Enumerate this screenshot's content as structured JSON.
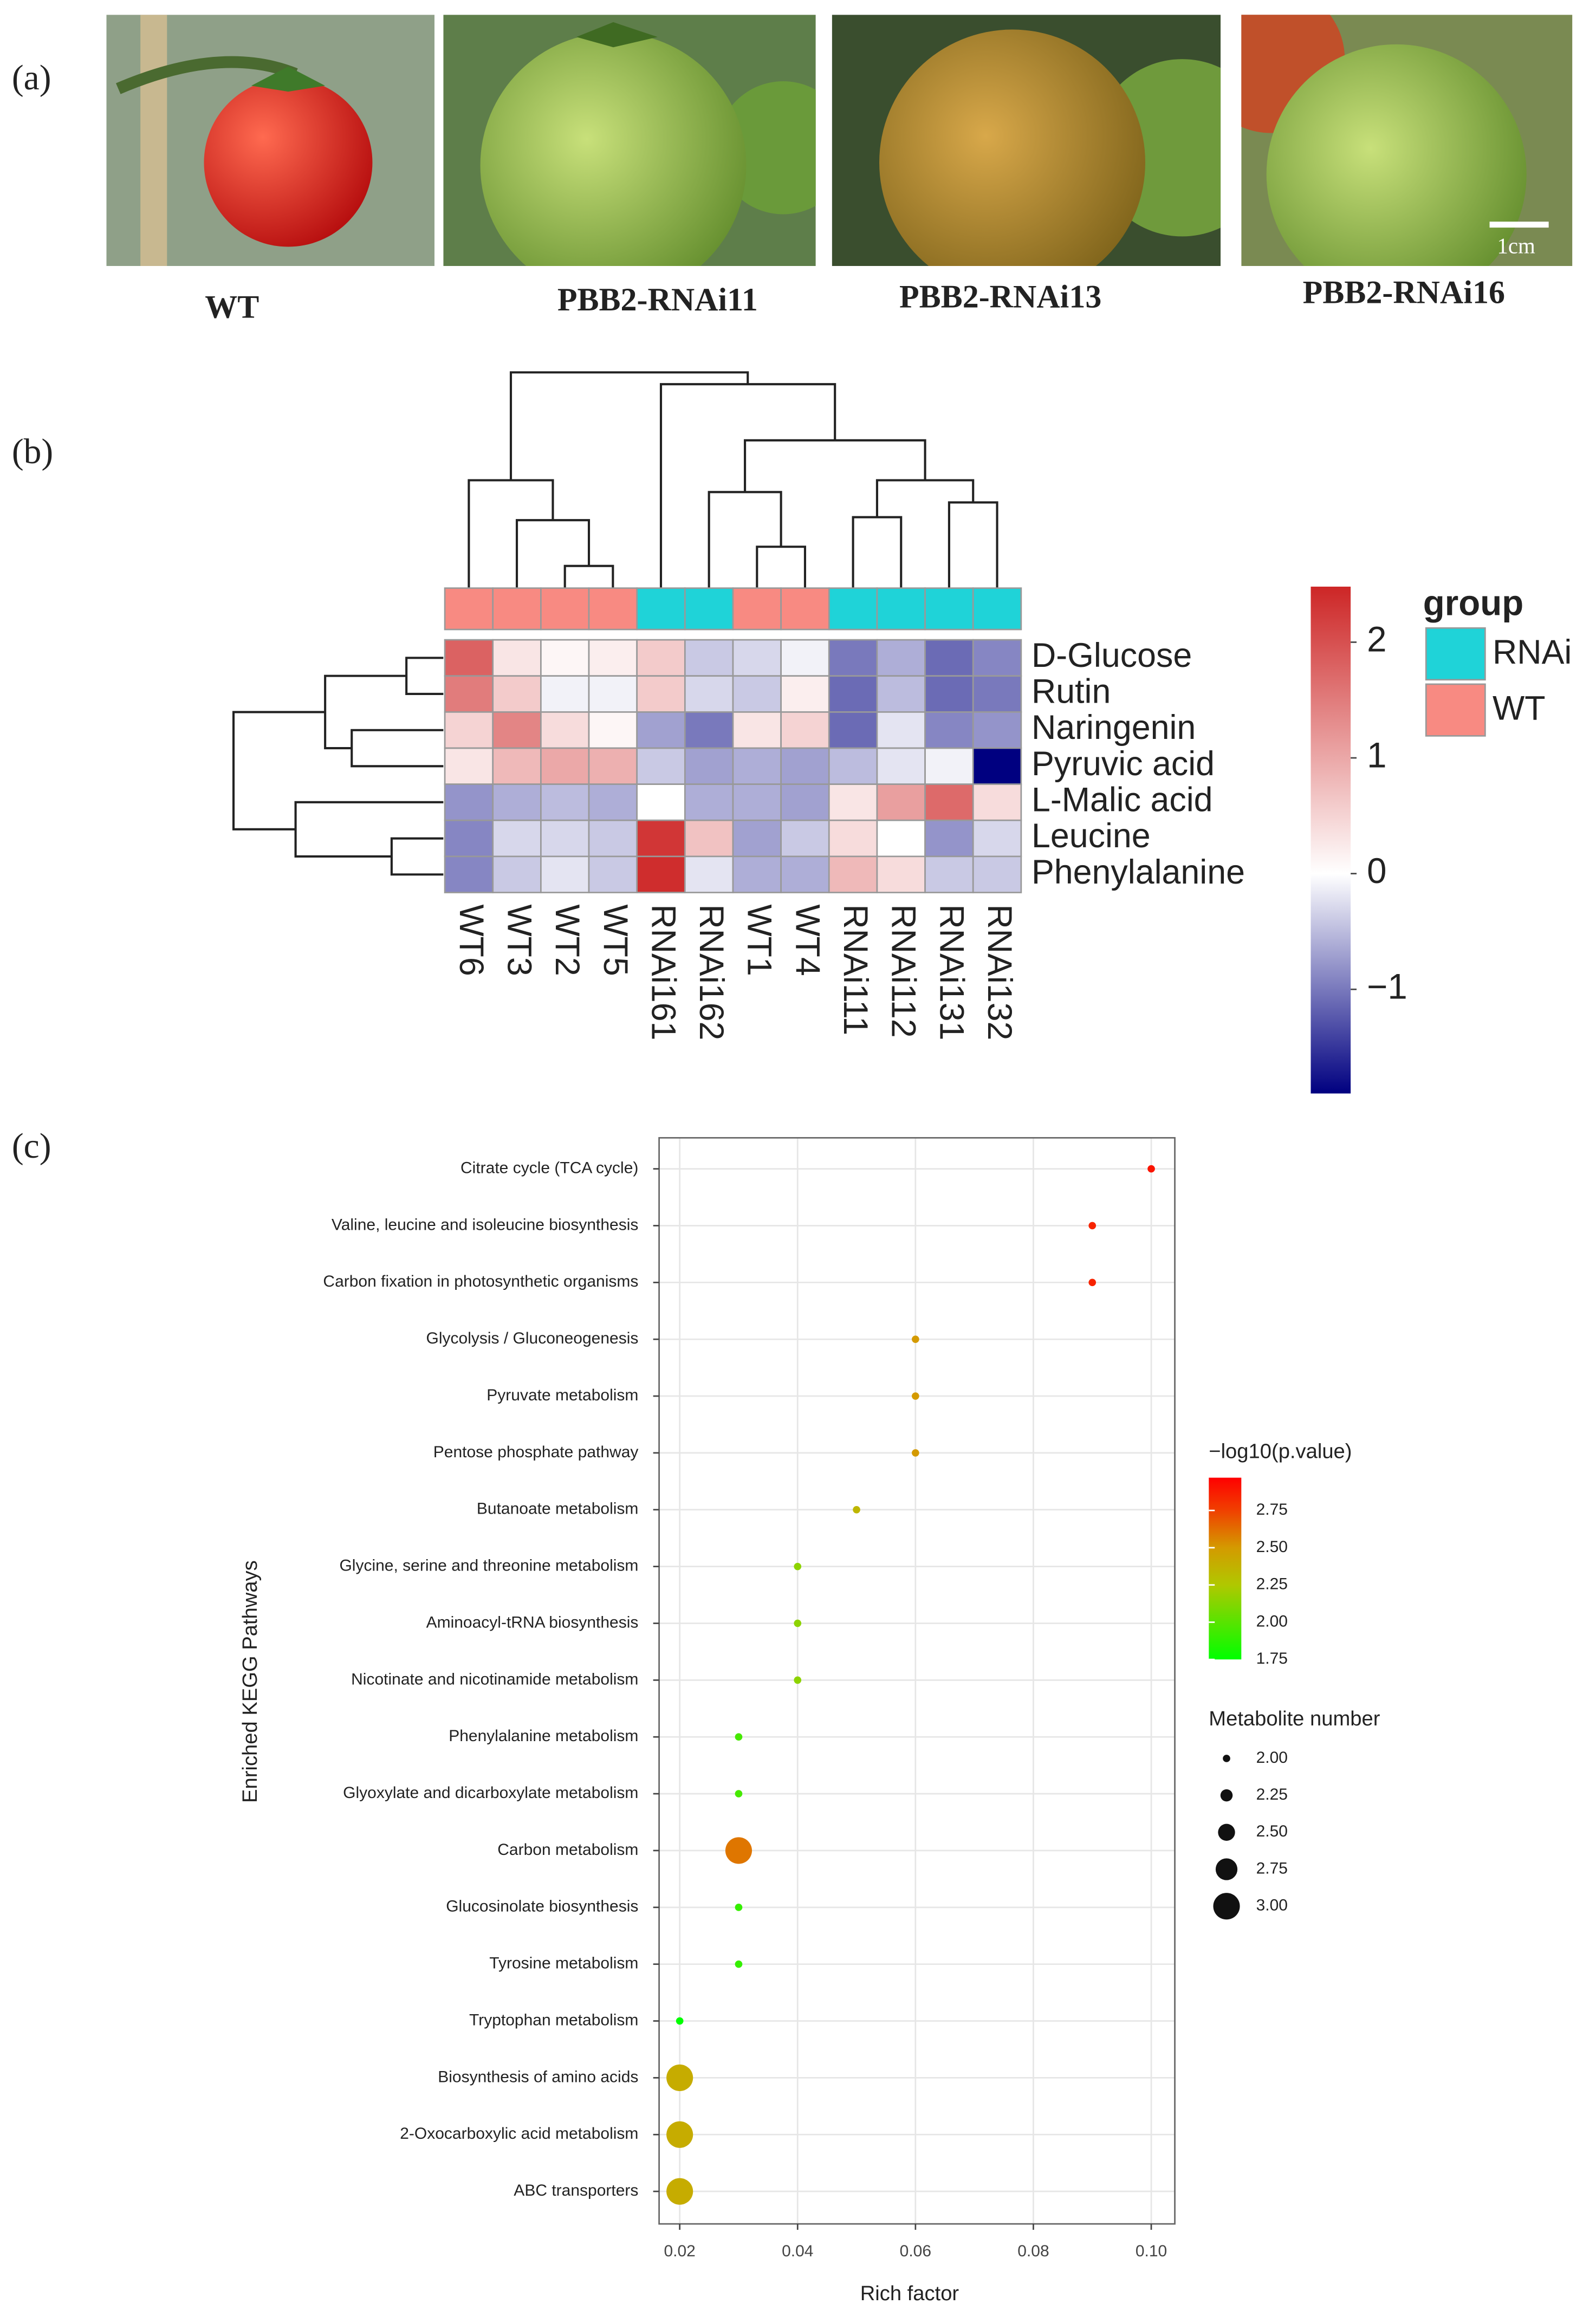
{
  "panel_a": {
    "label": "(a)",
    "photos": [
      {
        "caption": "WT"
      },
      {
        "caption": "PBB2-RNAi11"
      },
      {
        "caption": "PBB2-RNAi13"
      },
      {
        "caption": "PBB2-RNAi16"
      }
    ],
    "scale_bar": "1cm"
  },
  "chart_data": [
    {
      "type": "heatmap",
      "panel_label": "(b)",
      "rows": [
        "D-Glucose",
        "Rutin",
        "Naringenin",
        "Pyruvic acid",
        "L-Malic acid",
        "Leucine",
        "Phenylalanine"
      ],
      "columns": [
        "WT6",
        "WT3",
        "WT2",
        "WT5",
        "RNAi161",
        "RNAi162",
        "WT1",
        "WT4",
        "RNAi111",
        "RNAi112",
        "RNAi131",
        "RNAi132"
      ],
      "groups": [
        "WT",
        "WT",
        "WT",
        "WT",
        "RNAi",
        "RNAi",
        "WT",
        "WT",
        "RNAi",
        "RNAi",
        "RNAi",
        "RNAi"
      ],
      "group_legend": {
        "title": "group",
        "items": [
          {
            "name": "RNAi",
            "color": "#1fd3d8"
          },
          {
            "name": "WT",
            "color": "#f88a82"
          }
        ]
      },
      "values": [
        [
          1.8,
          0.3,
          0.1,
          0.2,
          0.6,
          -0.4,
          -0.3,
          -0.1,
          -1.0,
          -0.6,
          -1.1,
          -0.9
        ],
        [
          1.5,
          0.6,
          -0.1,
          -0.1,
          0.6,
          -0.3,
          -0.4,
          0.2,
          -1.1,
          -0.5,
          -1.1,
          -1.0
        ],
        [
          0.5,
          1.4,
          0.4,
          0.1,
          -0.7,
          -1.0,
          0.3,
          0.5,
          -1.1,
          -0.2,
          -0.9,
          -0.8
        ],
        [
          0.3,
          0.8,
          1.0,
          0.9,
          -0.4,
          -0.7,
          -0.6,
          -0.7,
          -0.5,
          -0.2,
          -0.1,
          -1.9
        ],
        [
          -0.8,
          -0.6,
          -0.5,
          -0.6,
          0.0,
          -0.6,
          -0.6,
          -0.7,
          0.3,
          1.1,
          1.7,
          0.4
        ],
        [
          -0.9,
          -0.3,
          -0.3,
          -0.4,
          2.3,
          0.7,
          -0.7,
          -0.4,
          0.4,
          0.0,
          -0.8,
          -0.3
        ],
        [
          -0.9,
          -0.4,
          -0.2,
          -0.4,
          2.4,
          -0.2,
          -0.6,
          -0.6,
          0.8,
          0.4,
          -0.4,
          -0.4
        ]
      ],
      "colorscale": [
        [
          -1.9,
          "#000080"
        ],
        [
          0,
          "#ffffff"
        ],
        [
          2.48,
          "#cd2626"
        ]
      ],
      "clim": [
        -1.9,
        2.48
      ],
      "cticks": [
        2,
        1,
        0,
        {
          "value": -1,
          "label": "−1"
        }
      ]
    },
    {
      "type": "dot",
      "panel_label": "(c)",
      "categories": [
        "Citrate cycle (TCA cycle)",
        "Valine, leucine and isoleucine biosynthesis",
        "Carbon fixation in photosynthetic organisms",
        "Glycolysis / Gluconeogenesis",
        "Pyruvate metabolism",
        "Pentose phosphate pathway",
        "Butanoate metabolism",
        "Glycine, serine and threonine metabolism",
        "Aminoacyl-tRNA biosynthesis",
        "Nicotinate and nicotinamide metabolism",
        "Phenylalanine metabolism",
        "Glyoxylate and dicarboxylate metabolism",
        "Carbon metabolism",
        "Glucosinolate biosynthesis",
        "Tyrosine metabolism",
        "Tryptophan metabolism",
        "Biosynthesis of amino acids",
        "2-Oxocarboxylic acid metabolism",
        "ABC transporters"
      ],
      "values": [
        0.1,
        0.09,
        0.09,
        0.06,
        0.06,
        0.06,
        0.05,
        0.04,
        0.04,
        0.04,
        0.03,
        0.03,
        0.03,
        0.03,
        0.03,
        0.02,
        0.02,
        0.02,
        0.02
      ],
      "color_values": [
        2.9,
        2.85,
        2.85,
        2.5,
        2.5,
        2.5,
        2.35,
        2.15,
        2.15,
        2.15,
        1.95,
        1.95,
        2.6,
        1.9,
        1.9,
        1.75,
        2.4,
        2.4,
        2.4
      ],
      "size_values": [
        2,
        2,
        2,
        2,
        2,
        2,
        2,
        2,
        2,
        2,
        2,
        2,
        3,
        2,
        2,
        2,
        3,
        3,
        3
      ],
      "xlim": [
        0.0165,
        0.104
      ],
      "xticks": [
        0.02,
        0.04,
        0.06,
        0.08,
        {
          "value": 0.1,
          "label": "0.10"
        }
      ],
      "xlabel": "Rich factor",
      "ylabel": "Enriched KEGG Pathways",
      "grid": true,
      "color_legend": {
        "title": "−log10(p.value)",
        "lim": [
          1.75,
          2.97
        ],
        "ticks": [
          2.75,
          {
            "value": 2.5,
            "label": "2.50"
          },
          2.25,
          {
            "value": 2,
            "label": "2.00"
          },
          1.75
        ],
        "scale": [
          [
            1.75,
            "#00ff00"
          ],
          [
            2.25,
            "#b0c800"
          ],
          [
            2.5,
            "#d49a00"
          ],
          [
            2.75,
            "#f04000"
          ],
          [
            2.97,
            "#ff0000"
          ]
        ]
      },
      "size_legend": {
        "title": "Metabolite number",
        "lim": [
          2,
          3
        ],
        "ticks": [
          {
            "value": 2,
            "label": "2.00"
          },
          2.25,
          {
            "value": 2.5,
            "label": "2.50"
          },
          2.75,
          {
            "value": 3,
            "label": "3.00"
          }
        ]
      }
    }
  ]
}
